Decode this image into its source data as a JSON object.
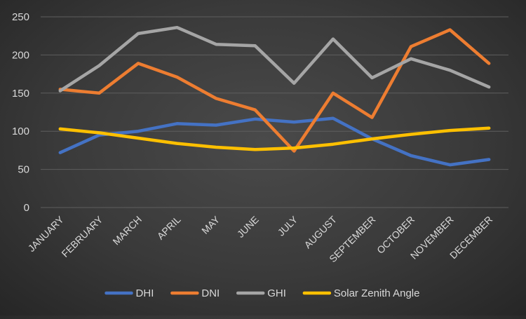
{
  "chart_data": {
    "type": "line",
    "title": "",
    "xlabel": "",
    "ylabel": "",
    "ylim": [
      0,
      250
    ],
    "yticks": [
      0,
      50,
      100,
      150,
      200,
      250
    ],
    "grid": true,
    "legend_position": "bottom",
    "categories": [
      "JANUARY",
      "FEBRUARY",
      "MARCH",
      "APRIL",
      "MAY",
      "JUNE",
      "JULY",
      "AUGUST",
      "SEPTEMBER",
      "OCTOBER",
      "NOVEMBER",
      "DECEMBER"
    ],
    "series": [
      {
        "name": "DHI",
        "color": "#4472c4",
        "values": [
          72,
          95,
          100,
          110,
          108,
          116,
          112,
          117,
          90,
          68,
          56,
          63
        ]
      },
      {
        "name": "DNI",
        "color": "#ed7d31",
        "values": [
          155,
          150,
          189,
          171,
          143,
          128,
          74,
          150,
          118,
          211,
          233,
          189
        ]
      },
      {
        "name": "GHI",
        "color": "#a5a5a5",
        "values": [
          153,
          186,
          228,
          236,
          214,
          212,
          163,
          221,
          170,
          195,
          180,
          158
        ]
      },
      {
        "name": "Solar Zenith Angle",
        "color": "#ffc000",
        "values": [
          103,
          98,
          91,
          84,
          79,
          76,
          78,
          83,
          90,
          96,
          101,
          104
        ]
      }
    ]
  }
}
